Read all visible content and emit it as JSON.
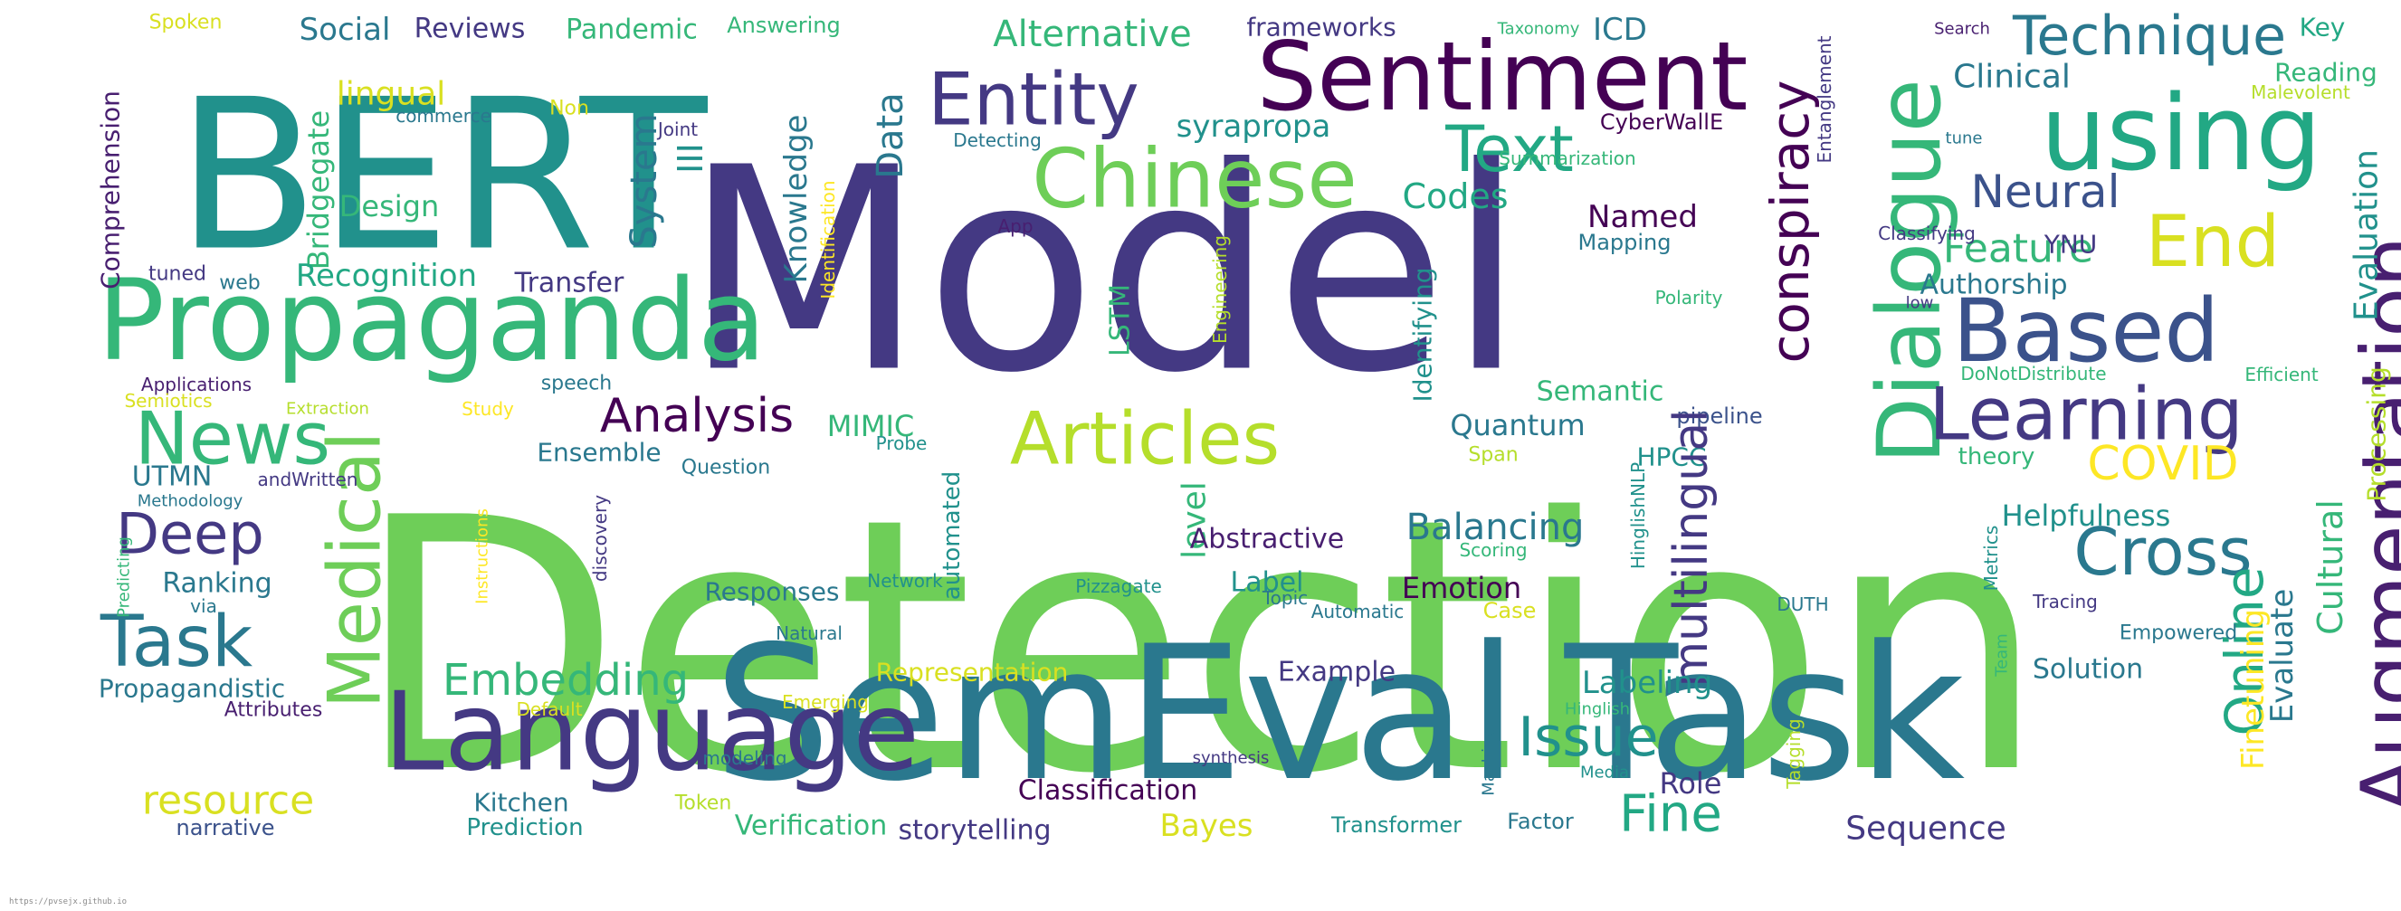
{
  "footer_url": "https://pvsejx.github.io",
  "palette": {
    "purple_dark": "#440154",
    "indigo": "#443983",
    "blue": "#31688e",
    "teal": "#21918c",
    "green_teal": "#35b779",
    "green": "#6ece58",
    "lime": "#b5de2b",
    "yellow": "#fde725"
  },
  "words": [
    {
      "t": "Detection",
      "c": "#6ece58"
    },
    {
      "t": "Model",
      "c": "#443983"
    },
    {
      "t": "BERT",
      "c": "#21918c"
    },
    {
      "t": "SemEval",
      "c": "#2a788e"
    },
    {
      "t": "Task",
      "c": "#2a788e"
    },
    {
      "t": "Language",
      "c": "#443983"
    },
    {
      "t": "Propaganda",
      "c": "#35b779"
    },
    {
      "t": "Sentiment",
      "c": "#440154"
    },
    {
      "t": "Entity",
      "c": "#443983"
    },
    {
      "t": "Chinese",
      "c": "#6ece58"
    },
    {
      "t": "Text",
      "c": "#22a884"
    },
    {
      "t": "using",
      "c": "#22a884"
    },
    {
      "t": "Technique",
      "c": "#2a788e"
    },
    {
      "t": "Dialogue",
      "c": "#35b779"
    },
    {
      "t": "conspiracy",
      "c": "#440154"
    },
    {
      "t": "Based",
      "c": "#3b528b"
    },
    {
      "t": "Learning",
      "c": "#443983"
    },
    {
      "t": "Augmentation",
      "c": "#481f70"
    },
    {
      "t": "Articles",
      "c": "#b5de2b"
    },
    {
      "t": "Medical",
      "c": "#6ece58"
    },
    {
      "t": "News",
      "c": "#35b779"
    },
    {
      "t": "Analysis",
      "c": "#440154"
    },
    {
      "t": "Cross",
      "c": "#2a788e"
    },
    {
      "t": "End",
      "c": "#d9e021"
    },
    {
      "t": "COVID",
      "c": "#fde725"
    },
    {
      "t": "Online",
      "c": "#22a884"
    },
    {
      "t": "Task",
      "c": "#2a788e"
    },
    {
      "t": "Deep",
      "c": "#443983"
    },
    {
      "t": "Embedding",
      "c": "#35b779"
    },
    {
      "t": "Issue",
      "c": "#21918c"
    },
    {
      "t": "Fine",
      "c": "#22a884"
    },
    {
      "t": "resource",
      "c": "#d9e021"
    },
    {
      "t": "Data",
      "c": "#2a788e"
    },
    {
      "t": "Neural",
      "c": "#3b528b"
    },
    {
      "t": "Feature",
      "c": "#35b779"
    },
    {
      "t": "Alternative",
      "c": "#35b779"
    },
    {
      "t": "Social",
      "c": "#2a788e"
    },
    {
      "t": "Reviews",
      "c": "#443983"
    },
    {
      "t": "Pandemic",
      "c": "#35b779"
    },
    {
      "t": "Answering",
      "c": "#35b779"
    },
    {
      "t": "Spoken",
      "c": "#d9e021"
    },
    {
      "t": "frameworks",
      "c": "#443983"
    },
    {
      "t": "Taxonomy",
      "c": "#35b779"
    },
    {
      "t": "ICD",
      "c": "#2a788e"
    },
    {
      "t": "Key",
      "c": "#22a884"
    },
    {
      "t": "Search",
      "c": "#481f70"
    },
    {
      "t": "Clinical",
      "c": "#2a788e"
    },
    {
      "t": "Reading",
      "c": "#35b779"
    },
    {
      "t": "Malevolent",
      "c": "#b5de2b"
    },
    {
      "t": "lingual",
      "c": "#d9e021"
    },
    {
      "t": "Non",
      "c": "#d9e021"
    },
    {
      "t": "Joint",
      "c": "#443983"
    },
    {
      "t": "commerce",
      "c": "#2a788e"
    },
    {
      "t": "Comprehension",
      "c": "#481f70"
    },
    {
      "t": "Design",
      "c": "#35b779"
    },
    {
      "t": "Bridgegate",
      "c": "#35b779"
    },
    {
      "t": "III",
      "c": "#21918c"
    },
    {
      "t": "System",
      "c": "#2a788e"
    },
    {
      "t": "Knowledge",
      "c": "#2a788e"
    },
    {
      "t": "Detecting",
      "c": "#2a788e"
    },
    {
      "t": "syrapropa",
      "c": "#21918c"
    },
    {
      "t": "CyberWallE",
      "c": "#440154"
    },
    {
      "t": "Summarization",
      "c": "#35b779"
    },
    {
      "t": "Entanglement",
      "c": "#443983"
    },
    {
      "t": "tune",
      "c": "#2a788e"
    },
    {
      "t": "YNU",
      "c": "#443983"
    },
    {
      "t": "Evaluation",
      "c": "#21918c"
    },
    {
      "t": "Codes",
      "c": "#22a884"
    },
    {
      "t": "Named",
      "c": "#440154"
    },
    {
      "t": "Mapping",
      "c": "#2a788e"
    },
    {
      "t": "App",
      "c": "#481f70"
    },
    {
      "t": "Identification",
      "c": "#fde725"
    },
    {
      "t": "Engineering",
      "c": "#b5de2b"
    },
    {
      "t": "LSTM",
      "c": "#35b779"
    },
    {
      "t": "Recognition",
      "c": "#22a884"
    },
    {
      "t": "Transfer",
      "c": "#443983"
    },
    {
      "t": "web",
      "c": "#2a788e"
    },
    {
      "t": "tuned",
      "c": "#443983"
    },
    {
      "t": "Identifying",
      "c": "#21918c"
    },
    {
      "t": "Polarity",
      "c": "#35b779"
    },
    {
      "t": "Classifying",
      "c": "#443983"
    },
    {
      "t": "low",
      "c": "#443983"
    },
    {
      "t": "Authorship",
      "c": "#2a788e"
    },
    {
      "t": "Semantic",
      "c": "#35b779"
    },
    {
      "t": "Efficient",
      "c": "#35b779"
    },
    {
      "t": "DoNotDistribute",
      "c": "#35b779"
    },
    {
      "t": "Processing",
      "c": "#b5de2b"
    },
    {
      "t": "Applications",
      "c": "#481f70"
    },
    {
      "t": "speech",
      "c": "#2a788e"
    },
    {
      "t": "Semiotics",
      "c": "#d9e021"
    },
    {
      "t": "Extraction",
      "c": "#b5de2b"
    },
    {
      "t": "Study",
      "c": "#fde725"
    },
    {
      "t": "Probe",
      "c": "#21918c"
    },
    {
      "t": "Quantum",
      "c": "#2a788e"
    },
    {
      "t": "pipeline",
      "c": "#3b528b"
    },
    {
      "t": "theory",
      "c": "#35b779"
    },
    {
      "t": "Ensemble",
      "c": "#2a788e"
    },
    {
      "t": "Question",
      "c": "#2a788e"
    },
    {
      "t": "Span",
      "c": "#b5de2b"
    },
    {
      "t": "HPCC",
      "c": "#21918c"
    },
    {
      "t": "MIMIC",
      "c": "#35b779"
    },
    {
      "t": "UTMN",
      "c": "#2a788e"
    },
    {
      "t": "andWritten",
      "c": "#443983"
    },
    {
      "t": "Methodology",
      "c": "#2a788e"
    },
    {
      "t": "Instructions",
      "c": "#fde725"
    },
    {
      "t": "discovery",
      "c": "#443983"
    },
    {
      "t": "automated",
      "c": "#21918c"
    },
    {
      "t": "level",
      "c": "#35b779"
    },
    {
      "t": "Balancing",
      "c": "#2a788e"
    },
    {
      "t": "multilingual",
      "c": "#443983"
    },
    {
      "t": "HinglishNLP",
      "c": "#21918c"
    },
    {
      "t": "Metrics",
      "c": "#21918c"
    },
    {
      "t": "Helpfulness",
      "c": "#21918c"
    },
    {
      "t": "Cultural",
      "c": "#35b779"
    },
    {
      "t": "Predicting",
      "c": "#35b779"
    },
    {
      "t": "Ranking",
      "c": "#2a788e"
    },
    {
      "t": "via",
      "c": "#2a788e"
    },
    {
      "t": "Network",
      "c": "#21918c"
    },
    {
      "t": "Responses",
      "c": "#2a788e"
    },
    {
      "t": "Pizzagate",
      "c": "#21918c"
    },
    {
      "t": "Abstractive",
      "c": "#481f70"
    },
    {
      "t": "Scoring",
      "c": "#35b779"
    },
    {
      "t": "Label",
      "c": "#21918c"
    },
    {
      "t": "Emotion",
      "c": "#440154"
    },
    {
      "t": "Topic",
      "c": "#2a788e"
    },
    {
      "t": "Automatic",
      "c": "#2a788e"
    },
    {
      "t": "Case",
      "c": "#d9e021"
    },
    {
      "t": "DUTH",
      "c": "#2a788e"
    },
    {
      "t": "Tracing",
      "c": "#443983"
    },
    {
      "t": "Empowered",
      "c": "#2a788e"
    },
    {
      "t": "Evaluate",
      "c": "#2a788e"
    },
    {
      "t": "Finetuning",
      "c": "#fde725"
    },
    {
      "t": "Team",
      "c": "#35b779"
    },
    {
      "t": "Natural",
      "c": "#2a788e"
    },
    {
      "t": "Propagandistic",
      "c": "#2a788e"
    },
    {
      "t": "Representation",
      "c": "#d9e021"
    },
    {
      "t": "Example",
      "c": "#443983"
    },
    {
      "t": "Labeling",
      "c": "#21918c"
    },
    {
      "t": "Solution",
      "c": "#2a788e"
    },
    {
      "t": "Attributes",
      "c": "#481f70"
    },
    {
      "t": "Default",
      "c": "#d9e021"
    },
    {
      "t": "Emerging",
      "c": "#d9e021"
    },
    {
      "t": "Hinglish",
      "c": "#35b779"
    },
    {
      "t": "Tagging",
      "c": "#b5de2b"
    },
    {
      "t": "modeling",
      "c": "#2a788e"
    },
    {
      "t": "synthesis",
      "c": "#443983"
    },
    {
      "t": "Machine",
      "c": "#2a788e"
    },
    {
      "t": "Media",
      "c": "#21918c"
    },
    {
      "t": "Role",
      "c": "#443983"
    },
    {
      "t": "Kitchen",
      "c": "#2a788e"
    },
    {
      "t": "Token",
      "c": "#b5de2b"
    },
    {
      "t": "Classification",
      "c": "#440154"
    },
    {
      "t": "Verification",
      "c": "#35b779"
    },
    {
      "t": "narrative",
      "c": "#3b528b"
    },
    {
      "t": "Prediction",
      "c": "#21918c"
    },
    {
      "t": "storytelling",
      "c": "#443983"
    },
    {
      "t": "Bayes",
      "c": "#d9e021"
    },
    {
      "t": "Transformer",
      "c": "#21918c"
    },
    {
      "t": "Factor",
      "c": "#2a788e"
    },
    {
      "t": "Sequence",
      "c": "#443983"
    }
  ]
}
